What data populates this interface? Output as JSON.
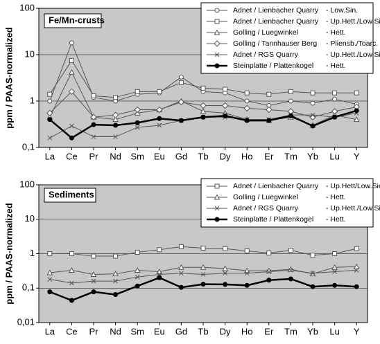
{
  "chart_data": [
    {
      "type": "line",
      "panel_label": "Fe/Mn-crusts",
      "ylabel": "ppm / PAAS-normalized",
      "log_scale": true,
      "grid": true,
      "categories": [
        "La",
        "Ce",
        "Pr",
        "Nd",
        "Sm",
        "Eu",
        "Gd",
        "Tb",
        "Dy",
        "Ho",
        "Er",
        "Tm",
        "Yb",
        "Lu",
        "Y"
      ],
      "ylim": [
        0.1,
        100
      ],
      "yticks": [
        {
          "value": 0.1,
          "label": "0,1"
        },
        1,
        10,
        100
      ],
      "series": [
        {
          "name": "Adnet / Lienbacher Quarry",
          "period": "- Low.Sin.",
          "marker": "circle",
          "color": "#555555",
          "line_width": 1,
          "values": [
            1.0,
            18,
            1.2,
            1.0,
            1.4,
            1.5,
            3.3,
            1.6,
            1.5,
            1.0,
            0.8,
            1.0,
            0.9,
            1.1,
            0.85
          ]
        },
        {
          "name": "Adnet / Lienbacher Quarry",
          "period": "- Up.Hett./Low.Sin.",
          "marker": "square",
          "color": "#555555",
          "line_width": 1,
          "values": [
            1.4,
            7.5,
            1.3,
            1.2,
            1.6,
            1.6,
            2.5,
            1.9,
            1.8,
            1.5,
            1.4,
            1.6,
            1.5,
            1.5,
            1.5
          ]
        },
        {
          "name": "Golling / Luegwinkel",
          "period": "- Hett.",
          "marker": "triangle",
          "color": "#555555",
          "line_width": 1,
          "values": [
            0.45,
            4.2,
            0.45,
            0.4,
            0.55,
            0.65,
            1.0,
            0.6,
            0.55,
            0.4,
            0.38,
            0.45,
            0.3,
            0.5,
            0.4
          ]
        },
        {
          "name": "Golling / Tannhauser Berg",
          "period": "- Pliensb./Toarc.",
          "marker": "diamond",
          "color": "#555555",
          "line_width": 1,
          "values": [
            0.55,
            1.6,
            0.45,
            0.5,
            0.65,
            0.65,
            0.95,
            0.8,
            0.8,
            0.7,
            0.65,
            0.6,
            0.45,
            0.6,
            0.75
          ]
        },
        {
          "name": "Adnet / RGS Quarry",
          "period": "- Up.Hett./Low.Sin.",
          "marker": "x",
          "color": "#555555",
          "line_width": 1,
          "values": [
            0.16,
            0.29,
            0.17,
            0.17,
            0.27,
            0.3,
            0.38,
            0.45,
            0.45,
            0.4,
            0.4,
            0.5,
            0.5,
            0.45,
            0.55
          ]
        },
        {
          "name": "Steinplatte / Plattenkogel",
          "period": "- Hett.",
          "marker": "dot",
          "color": "#000000",
          "line_width": 2.5,
          "values": [
            0.4,
            0.16,
            0.31,
            0.3,
            0.34,
            0.42,
            0.38,
            0.45,
            0.48,
            0.38,
            0.38,
            0.48,
            0.29,
            0.45,
            0.62
          ]
        }
      ]
    },
    {
      "type": "line",
      "panel_label": "Sediments",
      "ylabel": "ppm / PAAS-normalized",
      "log_scale": true,
      "grid": true,
      "categories": [
        "La",
        "Ce",
        "Pr",
        "Nd",
        "Sm",
        "Eu",
        "Gd",
        "Tb",
        "Dy",
        "Ho",
        "Er",
        "Tm",
        "Yb",
        "Lu",
        "Y"
      ],
      "ylim": [
        0.01,
        100
      ],
      "yticks": [
        {
          "value": 0.01,
          "label": "0,01"
        },
        {
          "value": 0.1,
          "label": "0,1"
        },
        1,
        10,
        100
      ],
      "series": [
        {
          "name": "Adnet / Lienbacher Quarry",
          "period": "- Up.Hett/Low.Sin.",
          "marker": "square",
          "color": "#555555",
          "line_width": 1,
          "values": [
            1.0,
            1.0,
            0.85,
            0.85,
            1.1,
            1.3,
            1.6,
            1.45,
            1.4,
            1.2,
            1.05,
            1.25,
            0.9,
            1.0,
            1.4
          ]
        },
        {
          "name": "Golling / Luegwinkel",
          "period": "- Hett.",
          "marker": "triangle",
          "color": "#555555",
          "line_width": 1,
          "values": [
            0.28,
            0.33,
            0.25,
            0.26,
            0.33,
            0.3,
            0.4,
            0.4,
            0.37,
            0.32,
            0.32,
            0.35,
            0.26,
            0.4,
            0.42
          ]
        },
        {
          "name": "Adnet / RGS Quarry",
          "period": "- Up.Hett./Low.Sin.",
          "marker": "x",
          "color": "#555555",
          "line_width": 1,
          "values": [
            0.18,
            0.14,
            0.16,
            0.16,
            0.21,
            0.25,
            0.27,
            0.25,
            0.27,
            0.27,
            0.3,
            0.33,
            0.27,
            0.3,
            0.33
          ]
        },
        {
          "name": "Steinplatte / Plattenkogel",
          "period": "- Hett.",
          "marker": "dot",
          "color": "#000000",
          "line_width": 2.5,
          "values": [
            0.078,
            0.044,
            0.078,
            0.065,
            0.115,
            0.2,
            0.105,
            0.13,
            0.128,
            0.12,
            0.17,
            0.185,
            0.11,
            0.12,
            0.11
          ]
        }
      ]
    }
  ]
}
